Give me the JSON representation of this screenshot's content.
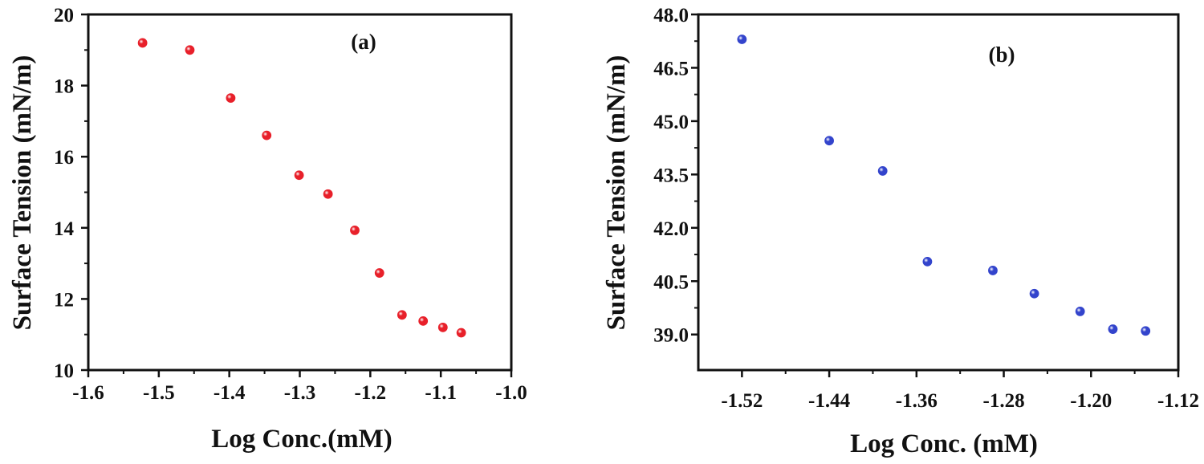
{
  "chart_data": [
    {
      "type": "scatter",
      "panel_label": "(a)",
      "xlabel": "Log Conc.(mM)",
      "ylabel": "Surface Tension (mN/m)",
      "xlim": [
        -1.6,
        -1.0
      ],
      "ylim": [
        10,
        20
      ],
      "x_ticks": [
        -1.6,
        -1.5,
        -1.4,
        -1.3,
        -1.2,
        -1.1,
        -1.0
      ],
      "x_tick_labels": [
        "-1.6",
        "-1.5",
        "-1.4",
        "-1.3",
        "-1.2",
        "-1.1",
        "-1.0"
      ],
      "y_ticks": [
        10,
        12,
        14,
        16,
        18,
        20
      ],
      "y_tick_labels": [
        "10",
        "12",
        "14",
        "16",
        "18",
        "20"
      ],
      "grid": false,
      "marker_color": "#e8202a",
      "series": [
        {
          "x": [
            -1.523,
            -1.456,
            -1.398,
            -1.347,
            -1.301,
            -1.26,
            -1.222,
            -1.187,
            -1.155,
            -1.125,
            -1.097,
            -1.071
          ],
          "y": [
            19.2,
            19.0,
            17.65,
            16.6,
            15.48,
            14.95,
            13.93,
            12.73,
            11.55,
            11.38,
            11.2,
            11.05
          ]
        }
      ]
    },
    {
      "type": "scatter",
      "panel_label": "(b)",
      "xlabel": "Log Conc. (mM)",
      "ylabel": "Surface Tension (mN/m)",
      "xlim": [
        -1.56,
        -1.12
      ],
      "ylim": [
        38.0,
        48.0
      ],
      "x_ticks": [
        -1.52,
        -1.44,
        -1.36,
        -1.28,
        -1.2,
        -1.12
      ],
      "x_tick_labels": [
        "-1.52",
        "-1.44",
        "-1.36",
        "-1.28",
        "-1.20",
        "-1.12"
      ],
      "y_ticks": [
        39.0,
        40.5,
        42.0,
        43.5,
        45.0,
        46.5,
        48.0
      ],
      "y_tick_labels": [
        "39.0",
        "40.5",
        "42.0",
        "43.5",
        "45.0",
        "46.5",
        "48.0"
      ],
      "grid": false,
      "marker_color": "#3344cc",
      "series": [
        {
          "x": [
            -1.52,
            -1.44,
            -1.391,
            -1.35,
            -1.29,
            -1.252,
            -1.21,
            -1.18,
            -1.15
          ],
          "y": [
            47.3,
            44.45,
            43.6,
            41.05,
            40.8,
            40.15,
            39.65,
            39.15,
            39.1
          ]
        }
      ]
    }
  ]
}
